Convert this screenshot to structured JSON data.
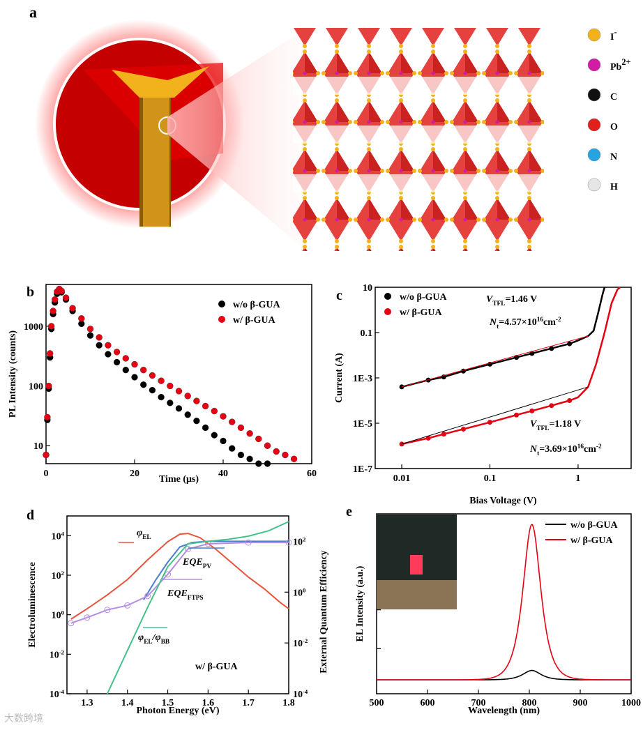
{
  "panel_a": {
    "label": "a",
    "legend": [
      {
        "symbol": "I",
        "sup": "-",
        "color": "#f2b21b"
      },
      {
        "symbol": "Pb",
        "sup": "2+",
        "color": "#d21ca6"
      },
      {
        "symbol": "C",
        "sup": "",
        "color": "#111111"
      },
      {
        "symbol": "O",
        "sup": "",
        "color": "#e0201d"
      },
      {
        "symbol": "N",
        "sup": "",
        "color": "#27a4e0"
      },
      {
        "symbol": "H",
        "sup": "",
        "color": "#e6e6e6"
      }
    ]
  },
  "colors": {
    "black_series": "#000000",
    "red_series": "#e60012",
    "green": "#44c28a",
    "violet": "#b58ee0",
    "blue": "#4a7fd0",
    "orange_red": "#e8533a"
  },
  "chart_data": [
    {
      "panel": "b",
      "type": "scatter",
      "xlabel": "Time (μs)",
      "ylabel": "PL Intensity (counts)",
      "xlim": [
        0,
        60
      ],
      "ylim": [
        5,
        5000
      ],
      "yscale": "log",
      "xticks": [
        "0",
        "20",
        "40",
        "60"
      ],
      "yticks": [
        "10",
        "100",
        "1000"
      ],
      "series": [
        {
          "name": "w/o β-GUA",
          "color": "#000000",
          "x": [
            0,
            0.3,
            0.6,
            0.9,
            1.2,
            1.6,
            2.0,
            2.5,
            3.0,
            3.5,
            4.5,
            6,
            8,
            10,
            12,
            14,
            16,
            18,
            20,
            22,
            24,
            26,
            28,
            30,
            32,
            34,
            36,
            38,
            40,
            42,
            44,
            46,
            48,
            50
          ],
          "y": [
            7,
            27,
            90,
            300,
            900,
            1600,
            2500,
            3500,
            4000,
            3700,
            2800,
            1800,
            1100,
            700,
            480,
            340,
            250,
            185,
            140,
            105,
            85,
            65,
            52,
            42,
            33,
            26,
            20,
            15,
            12,
            9,
            7,
            6,
            5,
            5
          ]
        },
        {
          "name": "w/ β-GUA",
          "color": "#e60012",
          "x": [
            0,
            0.3,
            0.6,
            0.9,
            1.2,
            1.6,
            2.0,
            2.5,
            3.0,
            3.5,
            4.5,
            6,
            8,
            10,
            12,
            14,
            16,
            18,
            20,
            22,
            24,
            26,
            28,
            30,
            32,
            34,
            36,
            38,
            40,
            42,
            44,
            46,
            48,
            50,
            52,
            54,
            56
          ],
          "y": [
            7,
            30,
            100,
            350,
            1000,
            1800,
            2800,
            3800,
            4200,
            3900,
            3000,
            2000,
            1350,
            900,
            650,
            480,
            370,
            290,
            230,
            185,
            150,
            122,
            100,
            82,
            68,
            56,
            46,
            38,
            31,
            25,
            20,
            16,
            13,
            10,
            8,
            7,
            6
          ]
        }
      ]
    },
    {
      "panel": "c",
      "type": "line",
      "xlabel": "Bias Voltage (V)",
      "ylabel": "Current (A)",
      "xscale": "log",
      "yscale": "log",
      "xlim": [
        0.005,
        4
      ],
      "ylim": [
        1e-07,
        10
      ],
      "xticks": [
        "0.01",
        "0.1",
        "1"
      ],
      "yticks": [
        "1E-7",
        "1E-5",
        "1E-3",
        "0.1",
        "10"
      ],
      "series": [
        {
          "name": "w/o β-GUA",
          "color": "#000000",
          "x": [
            0.01,
            0.02,
            0.03,
            0.05,
            0.1,
            0.2,
            0.3,
            0.5,
            0.8,
            1.0,
            1.3,
            1.5,
            1.7,
            1.9,
            2.0
          ],
          "y": [
            0.0004,
            0.0008,
            0.0011,
            0.002,
            0.004,
            0.008,
            0.012,
            0.02,
            0.032,
            0.045,
            0.07,
            0.12,
            0.8,
            5,
            10
          ]
        },
        {
          "name": "w/ β-GUA",
          "color": "#e60012",
          "x": [
            0.01,
            0.02,
            0.03,
            0.05,
            0.1,
            0.2,
            0.3,
            0.5,
            0.8,
            1.0,
            1.3,
            1.6,
            2.0,
            2.4,
            2.8,
            3.0
          ],
          "y": [
            1.2e-06,
            2.2e-06,
            3.3e-06,
            5.5e-06,
            1.1e-05,
            2.3e-05,
            3.5e-05,
            6e-05,
            0.0001,
            0.00014,
            0.0004,
            0.004,
            0.1,
            2,
            8,
            10
          ]
        }
      ],
      "annotations": [
        {
          "v": "V",
          "sub": "TFL",
          "val": "=1.46 V",
          "color": "#000000"
        },
        {
          "v": "N",
          "sub": "t",
          "val": "=4.57×10",
          "sup": "16",
          "unit": "cm",
          "unit_sup": "-2",
          "color": "#000000"
        },
        {
          "v": "V",
          "sub": "TFL",
          "val": "=1.18 V",
          "color": "#e60012"
        },
        {
          "v": "N",
          "sub": "t",
          "val": "=3.69×10",
          "sup": "16",
          "unit": "cm",
          "unit_sup": "-2",
          "color": "#e60012"
        }
      ]
    },
    {
      "panel": "d",
      "type": "line",
      "xlabel": "Photon Energy (eV)",
      "ylabel_left": "Electroluminescence",
      "ylabel_right": "External Quantum Efficiency",
      "xlim": [
        1.25,
        1.8
      ],
      "ylim_left": [
        0.0001,
        100000.0
      ],
      "ylim_right": [
        0.0001,
        1000.0
      ],
      "yscale": "log",
      "xticks": [
        "1.3",
        "1.4",
        "1.5",
        "1.6",
        "1.7",
        "1.8"
      ],
      "yticks_left": [
        {
          "base": "10",
          "exp": "-4"
        },
        {
          "base": "10",
          "exp": "-2"
        },
        {
          "base": "10",
          "exp": "0"
        },
        {
          "base": "10",
          "exp": "2"
        },
        {
          "base": "10",
          "exp": "4"
        }
      ],
      "yticks_right": [
        {
          "base": "10",
          "exp": "-4"
        },
        {
          "base": "10",
          "exp": "-2"
        },
        {
          "base": "10",
          "exp": "0"
        },
        {
          "base": "10",
          "exp": "2"
        }
      ],
      "labels": [
        {
          "main": "φ",
          "sub": "EL"
        },
        {
          "main": "EQE",
          "sub": "PV"
        },
        {
          "main": "EQE",
          "sub": "FTPS"
        },
        {
          "main": "φ",
          "sub": "EL",
          "main2": "/φ",
          "sub2": "BB"
        }
      ],
      "condition": "w/ β-GUA",
      "series": [
        {
          "name": "φEL",
          "color": "#e8533a",
          "axis": "left",
          "x": [
            1.26,
            1.3,
            1.35,
            1.4,
            1.45,
            1.5,
            1.53,
            1.55,
            1.58,
            1.62,
            1.66,
            1.7,
            1.74,
            1.78,
            1.8
          ],
          "y": [
            0.6,
            2,
            10,
            60,
            600,
            5000,
            12000,
            13000,
            8000,
            2000,
            400,
            80,
            20,
            4,
            2
          ]
        },
        {
          "name": "EQE_PV",
          "color": "#4a7fd0",
          "axis": "right",
          "x": [
            1.44,
            1.47,
            1.5,
            1.53,
            1.56,
            1.6,
            1.65,
            1.7,
            1.75,
            1.8
          ],
          "y": [
            0.5,
            3,
            15,
            60,
            90,
            100,
            100,
            100,
            100,
            100
          ]
        },
        {
          "name": "EQE_FTPS",
          "color": "#b58ee0",
          "axis": "right",
          "x": [
            1.26,
            1.3,
            1.35,
            1.4,
            1.45,
            1.5,
            1.55,
            1.6,
            1.7,
            1.8
          ],
          "y": [
            0.06,
            0.1,
            0.2,
            0.3,
            0.7,
            5,
            50,
            80,
            90,
            90
          ]
        },
        {
          "name": "φEL/φBB",
          "color": "#44c28a",
          "axis": "right",
          "x": [
            1.35,
            1.4,
            1.45,
            1.5,
            1.55,
            1.6,
            1.65,
            1.7,
            1.75,
            1.8
          ],
          "y": [
            0.0001,
            0.005,
            0.25,
            10,
            80,
            100,
            120,
            160,
            260,
            600
          ]
        }
      ]
    },
    {
      "panel": "e",
      "type": "line",
      "xlabel": "Wavelength (nm)",
      "ylabel": "EL Intensity (a.u.)",
      "xlim": [
        500,
        1000
      ],
      "ylim": [
        0,
        1.0
      ],
      "xticks": [
        "500",
        "600",
        "700",
        "800",
        "900",
        "1000"
      ],
      "series": [
        {
          "name": "w/o β-GUA",
          "color": "#000000",
          "center": 805,
          "width": 28,
          "peak": 0.06
        },
        {
          "name": "w/ β-GUA",
          "color": "#e60012",
          "center": 805,
          "width": 28,
          "peak": 1.0
        }
      ]
    }
  ],
  "watermark": "大数跨境"
}
